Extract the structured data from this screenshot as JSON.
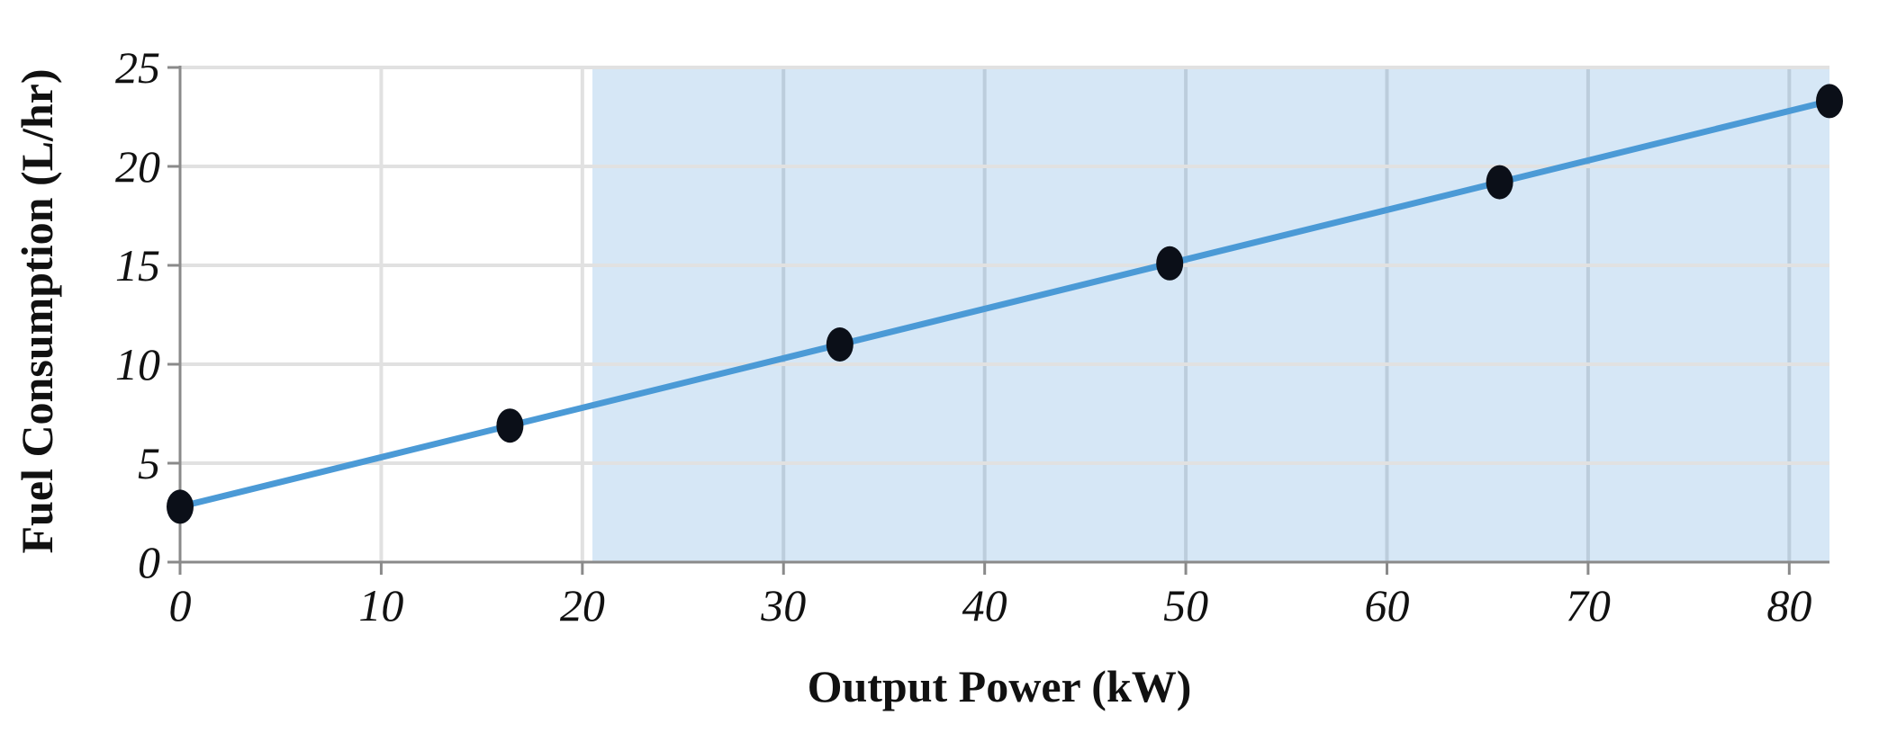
{
  "chart_data": {
    "type": "line",
    "title": "",
    "xlabel": "Output Power (kW)",
    "ylabel": "Fuel Consumption (L/hr)",
    "xlim": [
      0,
      82
    ],
    "ylim": [
      0,
      25
    ],
    "x_ticks": [
      "0",
      "10",
      "20",
      "30",
      "40",
      "50",
      "60",
      "70",
      "80"
    ],
    "y_ticks": [
      "0",
      "5",
      "10",
      "15",
      "20",
      "25"
    ],
    "grid": true,
    "shaded_region": {
      "x_start": 20.5,
      "x_end": 82,
      "color": "#d6e7f6"
    },
    "series": [
      {
        "type": "line",
        "color": "#4b9ad6",
        "x": [
          0,
          82
        ],
        "y": [
          2.8,
          23.3
        ]
      },
      {
        "type": "scatter",
        "color": "#0b0f18",
        "x": [
          0,
          16.4,
          32.8,
          49.2,
          65.6,
          82
        ],
        "y": [
          2.8,
          6.9,
          11.0,
          15.1,
          19.2,
          23.3
        ]
      }
    ]
  }
}
